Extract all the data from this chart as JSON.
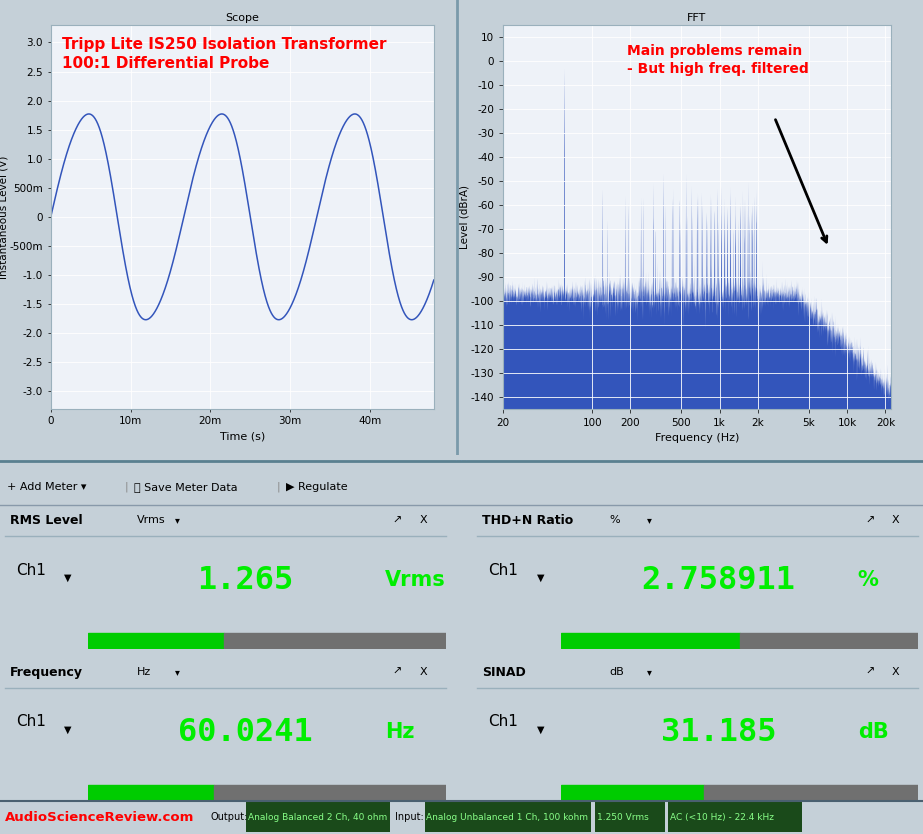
{
  "title_scope": "Scope",
  "title_fft": "FFT",
  "scope_xlabel": "Time (s)",
  "scope_ylabel": "Instantaneous Level (V)",
  "scope_ytick_vals": [
    3.0,
    2.5,
    2.0,
    1.5,
    1.0,
    0.5,
    0,
    -0.5,
    -1.0,
    -1.5,
    -2.0,
    -2.5,
    -3.0
  ],
  "scope_ytick_labels": [
    "3.0",
    "2.5",
    "2.0",
    "1.5",
    "1.0",
    "500m",
    "0",
    "-500m",
    "-1.0",
    "-1.5",
    "-2.0",
    "-2.5",
    "-3.0"
  ],
  "scope_xtick_vals": [
    0,
    0.01,
    0.02,
    0.03,
    0.04
  ],
  "scope_xtick_labels": [
    "0",
    "10m",
    "20m",
    "30m",
    "40m"
  ],
  "scope_xlim": [
    0,
    0.048
  ],
  "scope_ylim": [
    -3.3,
    3.3
  ],
  "fft_ylabel": "Level (dBrA)",
  "fft_xlabel": "Frequency (Hz)",
  "fft_yticks": [
    10,
    0,
    -10,
    -20,
    -30,
    -40,
    -50,
    -60,
    -70,
    -80,
    -90,
    -100,
    -110,
    -120,
    -130,
    -140
  ],
  "fft_xtick_labels": [
    "20",
    "100",
    "200",
    "500",
    "1k",
    "2k",
    "5k",
    "10k",
    "20k"
  ],
  "fft_xtick_vals": [
    20,
    100,
    200,
    500,
    1000,
    2000,
    5000,
    10000,
    20000
  ],
  "fft_xlim": [
    20,
    22000
  ],
  "fft_ylim": [
    -145,
    15
  ],
  "annotation_text": "Main problems remain\n- But high freq. filtered",
  "scope_annotation": "Tripp Lite IS250 Isolation Transformer\n100:1 Differential Probe",
  "line_color": "#3355bb",
  "plot_bg": "#eef2f8",
  "outer_bg": "#c5d0d8",
  "panel_bg": "#c8d4dc",
  "meter_area_bg": "#c0ccd4",
  "rms_label": "RMS Level",
  "rms_unit_label": "Vrms",
  "rms_value": "1.265",
  "rms_unit": "Vrms",
  "rms_bar_fill": 0.38,
  "thd_label": "THD+N Ratio",
  "thd_unit_label": "%",
  "thd_value": "2.758911",
  "thd_unit": "%",
  "thd_bar_fill": 0.5,
  "freq_label": "Frequency",
  "freq_unit_label": "Hz",
  "freq_value": "60.0241",
  "freq_unit": "Hz",
  "freq_bar_fill": 0.35,
  "sinad_label": "SINAD",
  "sinad_unit_label": "dB",
  "sinad_value": "31.185",
  "sinad_unit": "dB",
  "sinad_bar_fill": 0.4,
  "bottom_text": "AudioScienceReview.com",
  "bottom_output_label": "Output:",
  "bottom_output_val": "Analog Balanced 2 Ch, 40 ohm",
  "bottom_input_label": "Input:",
  "bottom_input_val": "Analog Unbalanced 1 Ch, 100 kohm",
  "bottom_level_val": "1.250 Vrms",
  "bottom_filter_val": "AC (<10 Hz) - 22.4 kHz",
  "toolbar_items": [
    "+ Add Meter ▾",
    "Save Meter Data",
    "▶ Regulate"
  ]
}
